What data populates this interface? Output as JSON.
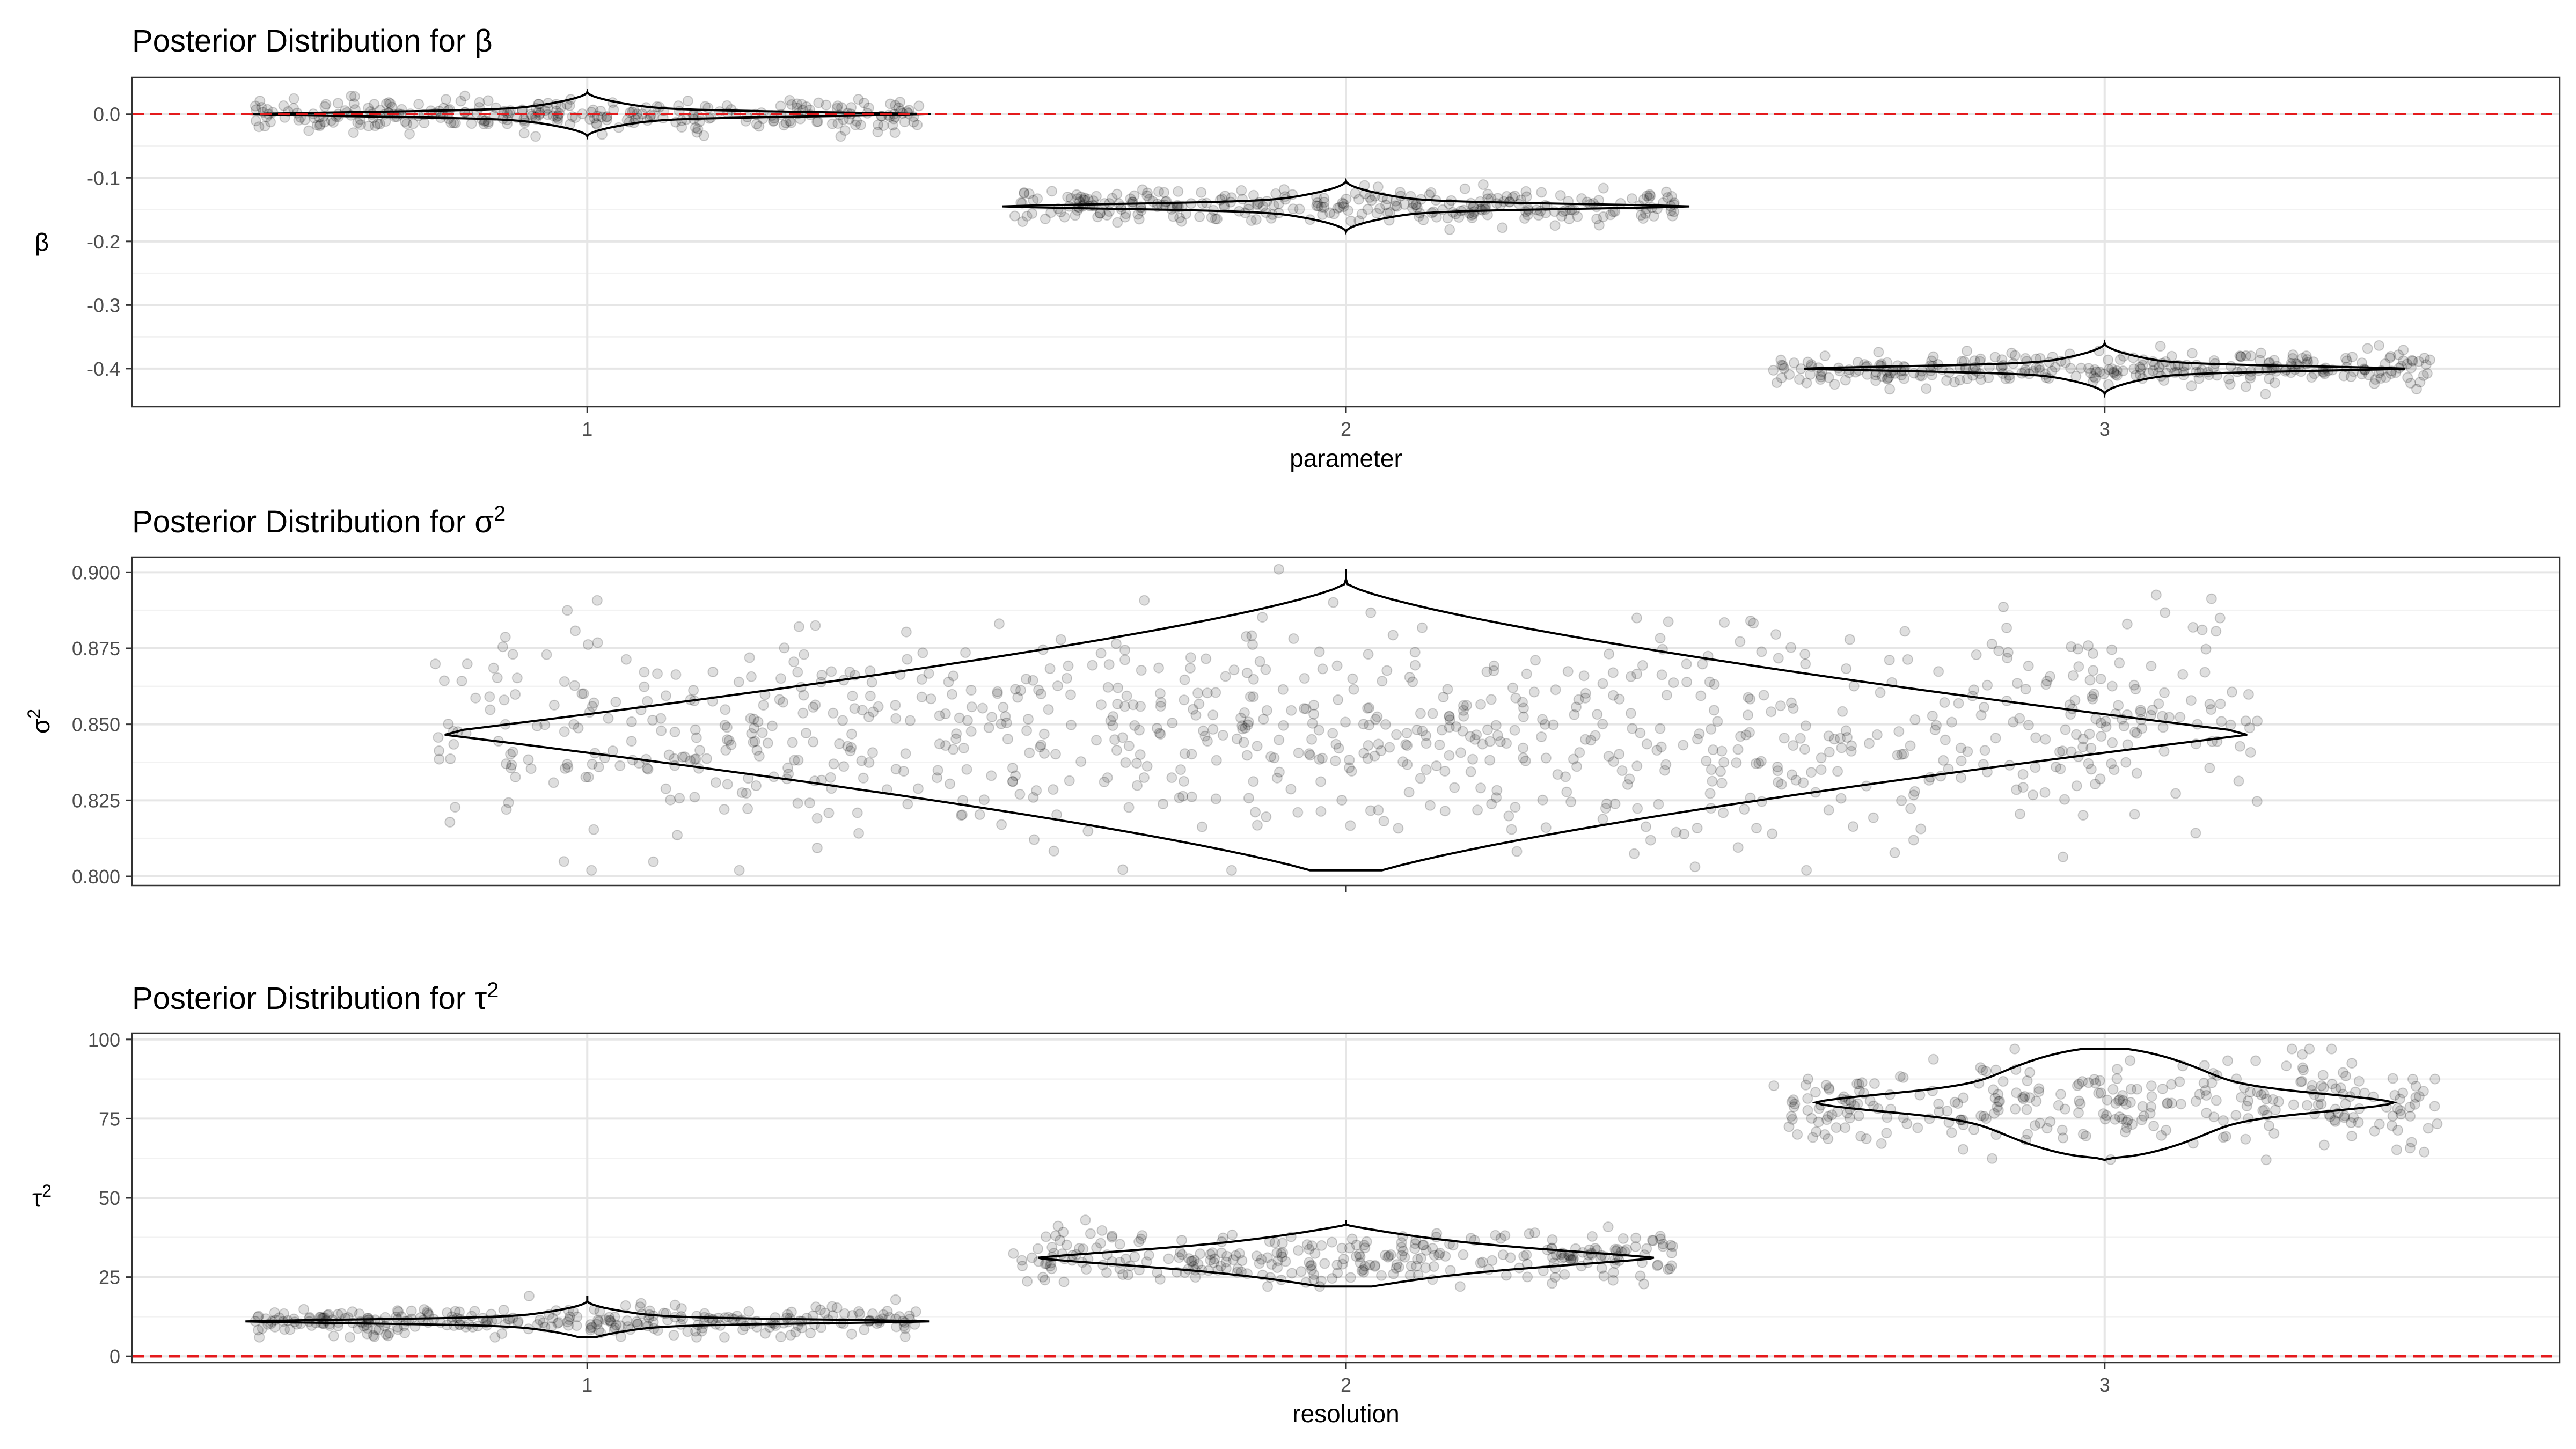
{
  "chart_data": [
    {
      "type": "violin",
      "title_text": "Posterior Distribution for ",
      "title_symbol": "β",
      "title_sup": "",
      "xlabel": "parameter",
      "ylabel": "β",
      "ylabel_sup": "",
      "ylim": [
        -0.46,
        0.058
      ],
      "yticks": [
        0.0,
        -0.1,
        -0.2,
        -0.3,
        -0.4
      ],
      "ytick_labels": [
        "0.0",
        "-0.1",
        "-0.2",
        "-0.3",
        "-0.4"
      ],
      "categories": [
        "1",
        "2",
        "3"
      ],
      "reference_line": 0,
      "grid": true,
      "series": [
        {
          "category": "1",
          "center": 0.0,
          "min": -0.035,
          "max": 0.035,
          "points": 300,
          "spread": 0.012
        },
        {
          "category": "2",
          "center": -0.145,
          "min": -0.185,
          "max": -0.105,
          "points": 300,
          "spread": 0.014
        },
        {
          "category": "3",
          "center": -0.4,
          "min": -0.44,
          "max": -0.36,
          "points": 300,
          "spread": 0.012
        }
      ]
    },
    {
      "type": "violin",
      "title_text": "Posterior Distribution for ",
      "title_symbol": "σ",
      "title_sup": "2",
      "xlabel": "",
      "ylabel": "σ",
      "ylabel_sup": "2",
      "ylim": [
        0.797,
        0.905
      ],
      "yticks": [
        0.9,
        0.875,
        0.85,
        0.825,
        0.8
      ],
      "ytick_labels": [
        "0.900",
        "0.875",
        "0.850",
        "0.825",
        "0.800"
      ],
      "categories": [
        ""
      ],
      "grid": true,
      "series": [
        {
          "category": "",
          "center": 0.847,
          "min": 0.802,
          "max": 0.901,
          "points": 900,
          "spread": 0.017
        }
      ]
    },
    {
      "type": "violin",
      "title_text": "Posterior Distribution for ",
      "title_symbol": "τ",
      "title_sup": "2",
      "xlabel": "resolution",
      "ylabel": "τ",
      "ylabel_sup": "2",
      "ylim": [
        -2,
        102
      ],
      "yticks": [
        100,
        75,
        50,
        25,
        0
      ],
      "ytick_labels": [
        "100",
        "75",
        "50",
        "25",
        "0"
      ],
      "categories": [
        "1",
        "2",
        "3"
      ],
      "reference_line": 0,
      "grid": true,
      "series": [
        {
          "category": "1",
          "center": 11,
          "min": 6,
          "max": 19,
          "points": 300,
          "spread": 2.5
        },
        {
          "category": "2",
          "center": 31,
          "min": 22,
          "max": 43,
          "points": 300,
          "spread": 4.2
        },
        {
          "category": "3",
          "center": 80,
          "min": 62,
          "max": 97,
          "points": 300,
          "spread": 6.5
        }
      ]
    }
  ]
}
